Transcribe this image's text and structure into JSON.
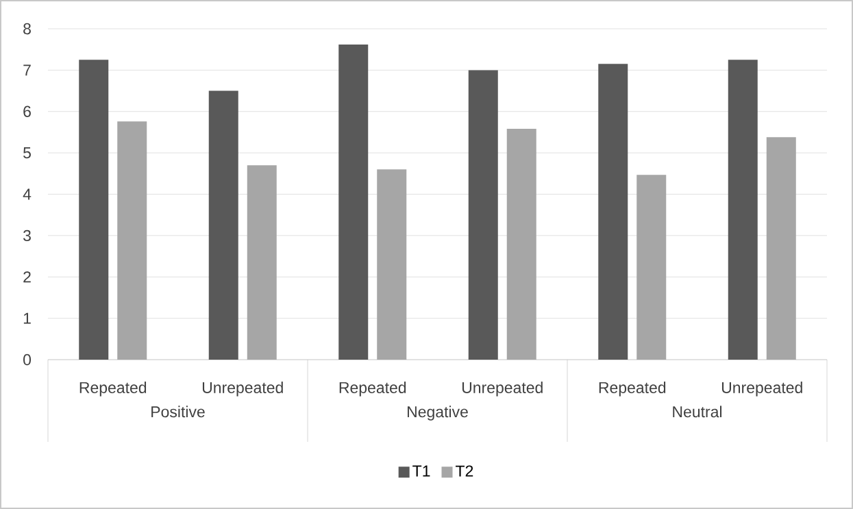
{
  "chart_data": {
    "type": "bar",
    "categories": [
      "Repeated",
      "Unrepeated",
      "Repeated",
      "Unrepeated",
      "Repeated",
      "Unrepeated"
    ],
    "series": [
      {
        "name": "T1",
        "color": "#595959",
        "values": [
          7.25,
          6.5,
          7.62,
          7.0,
          7.15,
          7.25
        ]
      },
      {
        "name": "T2",
        "color": "#a6a6a6",
        "values": [
          5.76,
          4.7,
          4.6,
          5.58,
          4.47,
          5.38
        ]
      }
    ],
    "annotations": [
      "Positive",
      "Negative",
      "Neutral"
    ],
    "ylim": [
      0,
      8
    ],
    "yticks": [
      0,
      1,
      2,
      3,
      4,
      5,
      6,
      7,
      8
    ],
    "grid": "y",
    "legend": "bottom"
  }
}
